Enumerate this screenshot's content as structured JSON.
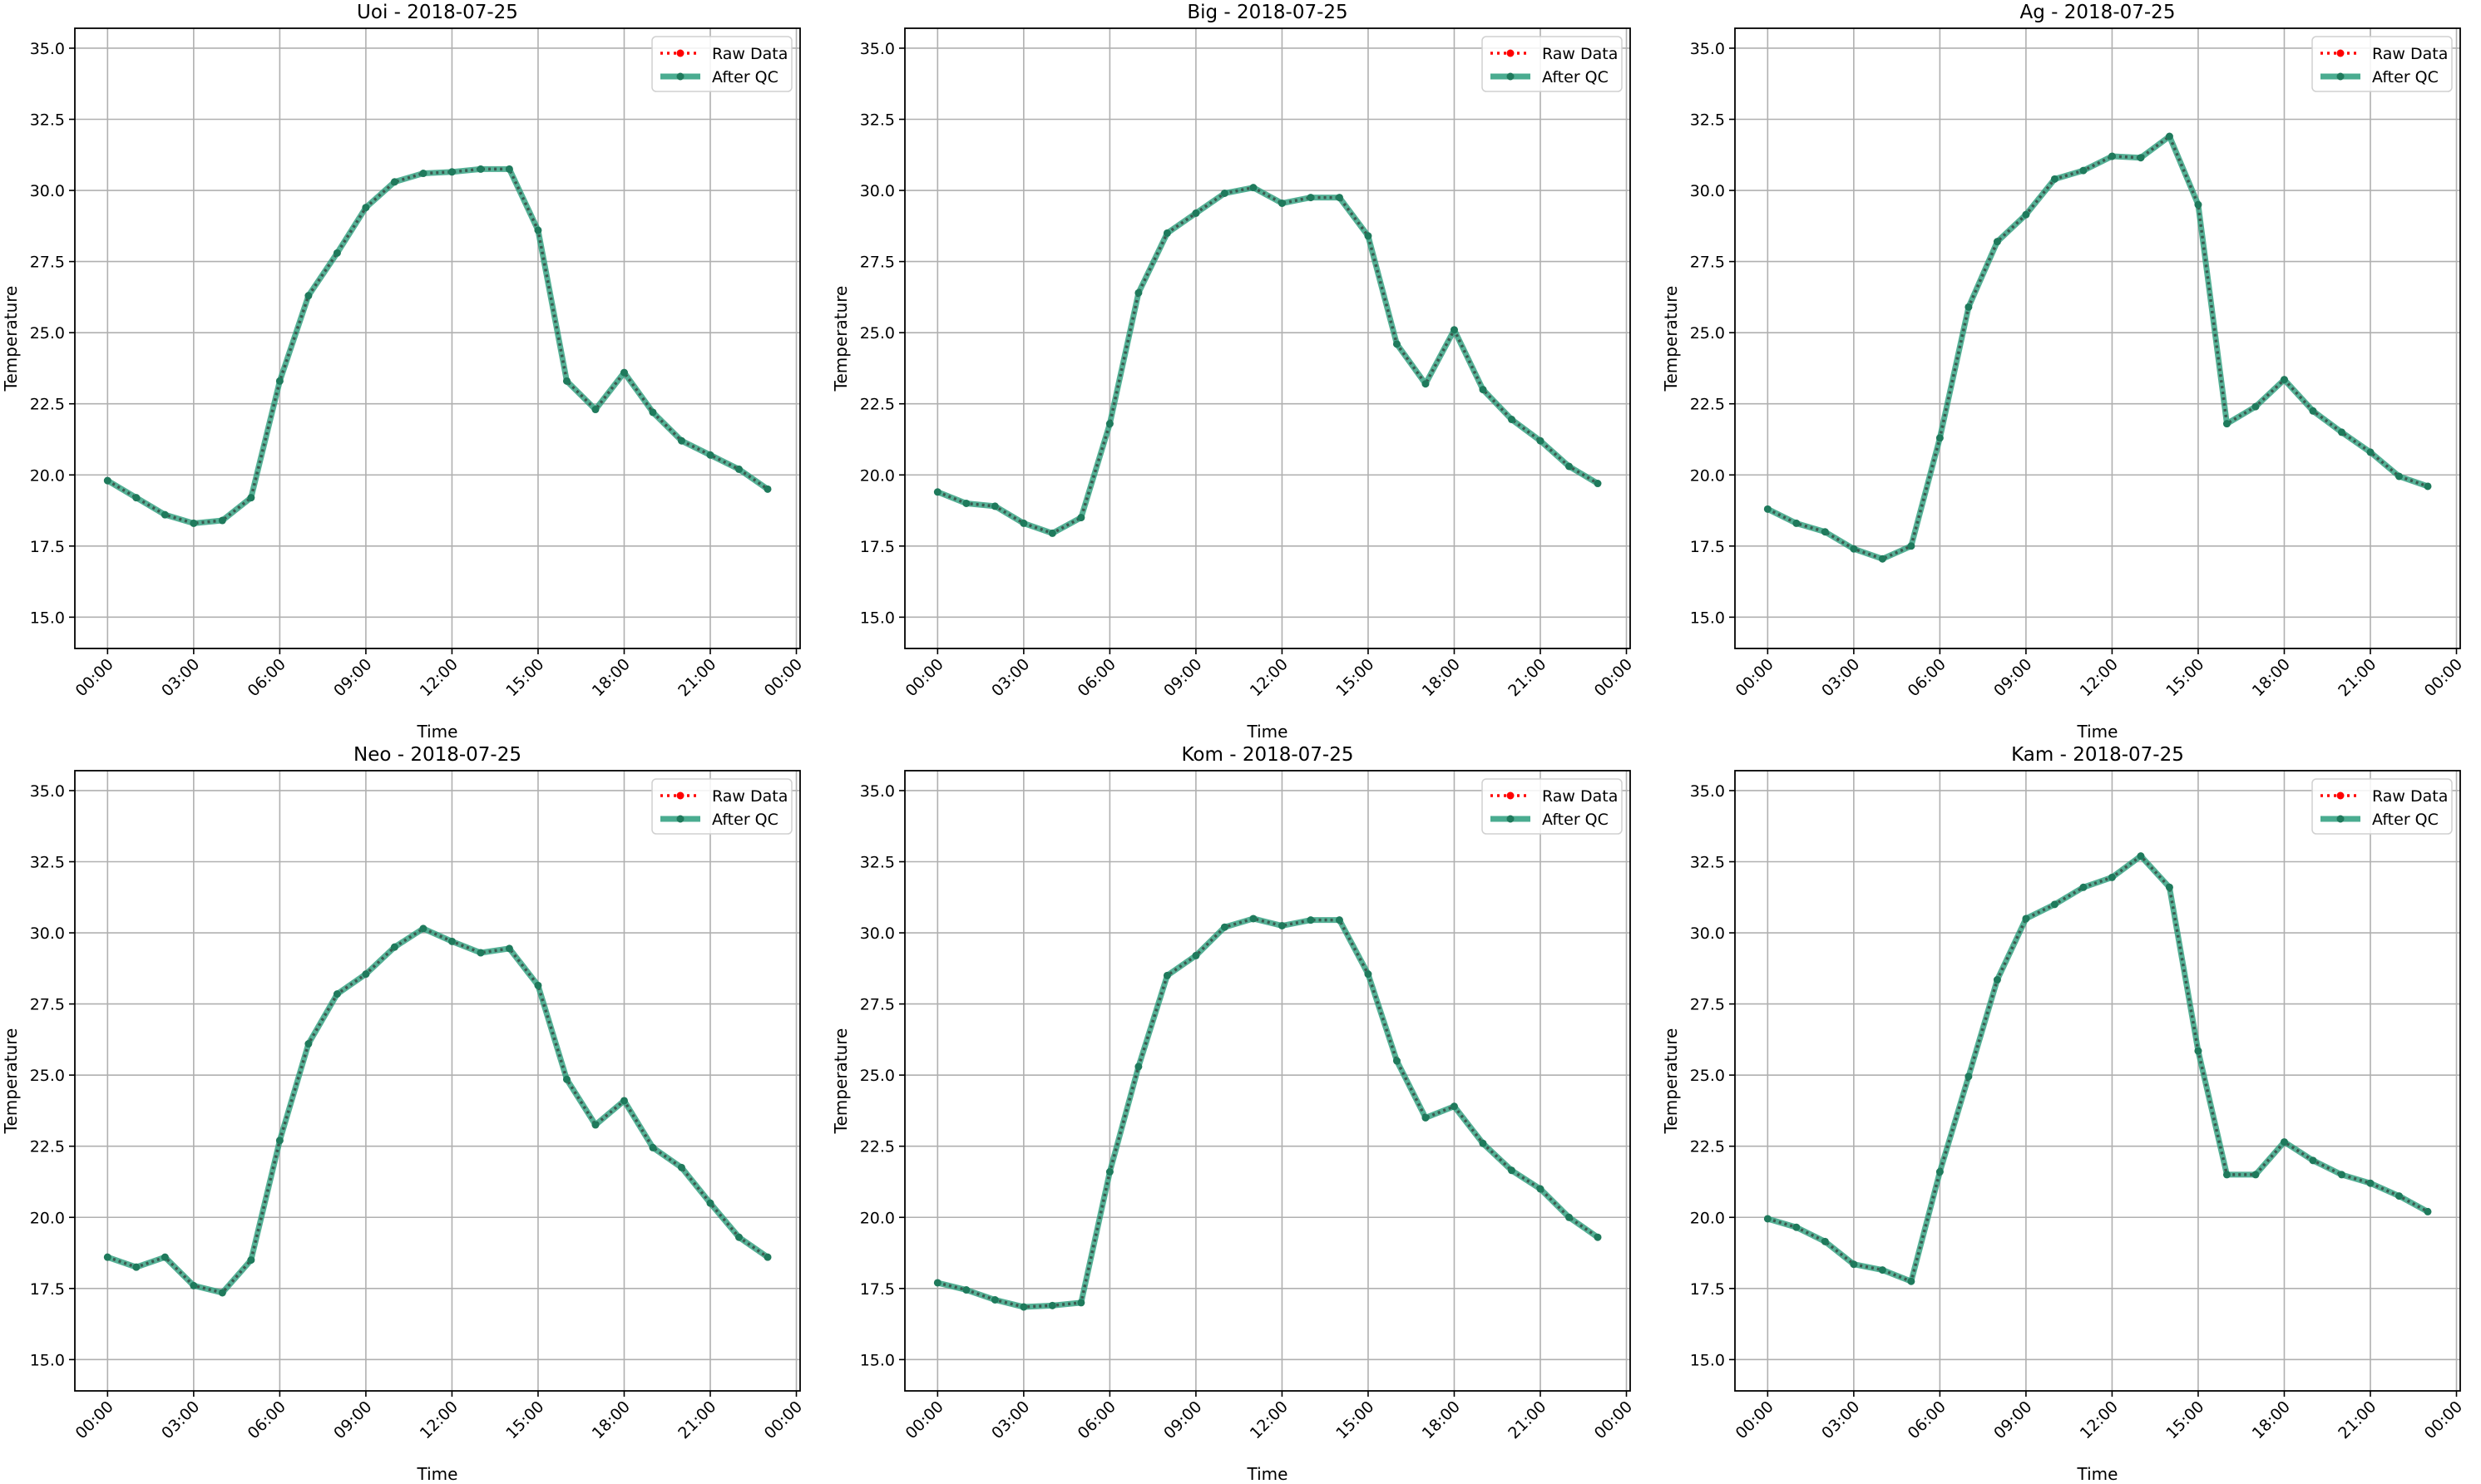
{
  "chart_data": [
    {
      "type": "line",
      "title": "Uoi - 2018-07-25",
      "xlabel": "Time",
      "ylabel": "Temperature",
      "values": [
        19.8,
        19.2,
        18.6,
        18.3,
        18.4,
        19.2,
        23.3,
        26.3,
        27.8,
        29.4,
        30.3,
        30.6,
        30.65,
        30.75,
        30.75,
        28.6,
        23.3,
        22.3,
        23.6,
        22.2,
        21.2,
        20.7,
        20.2,
        19.5
      ]
    },
    {
      "type": "line",
      "title": "Big - 2018-07-25",
      "xlabel": "Time",
      "ylabel": "Temperature",
      "values": [
        19.4,
        19.0,
        18.9,
        18.3,
        17.95,
        18.5,
        21.8,
        26.4,
        28.5,
        29.2,
        29.9,
        30.1,
        29.55,
        29.75,
        29.75,
        28.4,
        24.6,
        23.2,
        25.1,
        23.0,
        21.95,
        21.2,
        20.3,
        19.7
      ]
    },
    {
      "type": "line",
      "title": "Ag - 2018-07-25",
      "xlabel": "Time",
      "ylabel": "Temperature",
      "values": [
        18.8,
        18.3,
        18.0,
        17.4,
        17.05,
        17.5,
        21.3,
        25.9,
        28.2,
        29.15,
        30.4,
        30.7,
        31.2,
        31.15,
        31.9,
        29.5,
        21.8,
        22.4,
        23.35,
        22.25,
        21.5,
        20.8,
        19.95,
        19.6
      ]
    },
    {
      "type": "line",
      "title": "Neo - 2018-07-25",
      "xlabel": "Time",
      "ylabel": "Temperature",
      "values": [
        18.6,
        18.25,
        18.6,
        17.6,
        17.35,
        18.5,
        22.7,
        26.1,
        27.85,
        28.55,
        29.5,
        30.15,
        29.7,
        29.3,
        29.45,
        28.15,
        24.85,
        23.25,
        24.1,
        22.45,
        21.75,
        20.5,
        19.3,
        18.6
      ]
    },
    {
      "type": "line",
      "title": "Kom - 2018-07-25",
      "xlabel": "Time",
      "ylabel": "Temperature",
      "values": [
        17.7,
        17.45,
        17.1,
        16.85,
        16.9,
        17.0,
        21.6,
        25.3,
        28.5,
        29.2,
        30.2,
        30.5,
        30.25,
        30.45,
        30.45,
        28.55,
        25.5,
        23.5,
        23.9,
        22.6,
        21.65,
        21.0,
        20.0,
        19.3
      ]
    },
    {
      "type": "line",
      "title": "Kam - 2018-07-25",
      "xlabel": "Time",
      "ylabel": "Temperature",
      "values": [
        19.95,
        19.65,
        19.15,
        18.35,
        18.15,
        17.75,
        21.6,
        24.95,
        28.35,
        30.5,
        31.0,
        31.6,
        31.95,
        32.7,
        31.6,
        25.85,
        21.5,
        21.5,
        22.65,
        22.0,
        21.5,
        21.2,
        20.75,
        20.2
      ]
    }
  ],
  "shared": {
    "x_hours": [
      0,
      1,
      2,
      3,
      4,
      5,
      6,
      7,
      8,
      9,
      10,
      11,
      12,
      13,
      14,
      15,
      16,
      17,
      18,
      19,
      20,
      21,
      22,
      23
    ],
    "xlim_hours": [
      -1.14,
      24.13
    ],
    "xticks_hours": [
      0,
      3,
      6,
      9,
      12,
      15,
      18,
      21,
      24
    ],
    "xtick_labels": [
      "00:00",
      "03:00",
      "06:00",
      "09:00",
      "12:00",
      "15:00",
      "18:00",
      "21:00",
      "00:00"
    ],
    "ylim": [
      13.9,
      35.7
    ],
    "yticks": [
      15,
      17.5,
      20,
      22.5,
      25,
      27.5,
      30,
      32.5,
      35
    ],
    "ytick_labels": [
      "15.0",
      "17.5",
      "20.0",
      "22.5",
      "25.0",
      "27.5",
      "30.0",
      "32.5",
      "35.0"
    ],
    "grid": true,
    "legend_position": "top-right",
    "legend": [
      "Raw Data",
      "After QC"
    ],
    "raw_color": "#ff0000",
    "qc_color": "#2a9d7c"
  }
}
